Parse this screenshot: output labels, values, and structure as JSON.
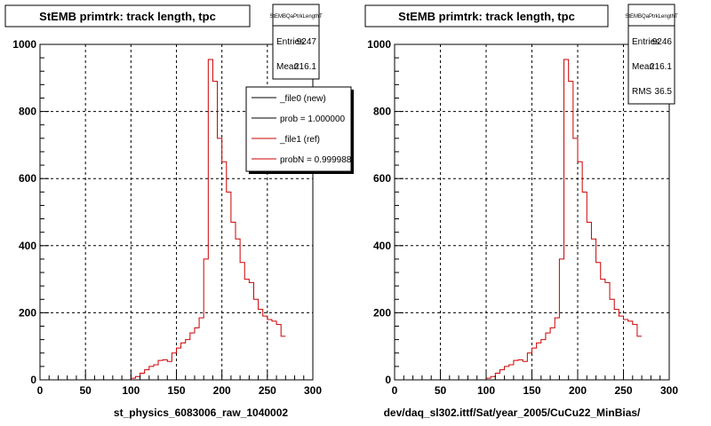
{
  "footer_text": "",
  "chart_data": [
    {
      "type": "histogram",
      "title": "StEMB primtrk: track length, tpc",
      "xlabel": "st_physics_6083006_raw_1040002",
      "ylabel": "",
      "xlim": [
        0,
        300
      ],
      "ylim": [
        0,
        1000
      ],
      "x_ticks": [
        "0",
        "50",
        "100",
        "150",
        "200",
        "250",
        "300"
      ],
      "y_ticks": [
        "0",
        "200",
        "400",
        "600",
        "800",
        "1000"
      ],
      "grid": true,
      "bin_width": 5,
      "bin_start": 0,
      "series": [
        {
          "name": "_file1 (ref)",
          "color": "#cc0000",
          "values": [
            0,
            0,
            0,
            0,
            0,
            0,
            0,
            0,
            0,
            0,
            0,
            0,
            0,
            0,
            0,
            0,
            0,
            0,
            0,
            0,
            5,
            10,
            20,
            30,
            40,
            45,
            58,
            60,
            55,
            80,
            95,
            110,
            120,
            140,
            155,
            185,
            360,
            955,
            890,
            720,
            650,
            560,
            470,
            420,
            350,
            300,
            290,
            240,
            210,
            190,
            180,
            175,
            165,
            130
          ]
        }
      ],
      "stats": {
        "name": "StEMBQaPtrkLengthT",
        "rows": [
          {
            "label": "Entries",
            "value": "9247"
          },
          {
            "label": "Mean",
            "value": "216.1"
          }
        ]
      },
      "legend": {
        "placement": "top-right",
        "entries": [
          {
            "label": "_file0 (new)",
            "color": "#000000"
          },
          {
            "label": "prob = 1.000000",
            "color": "#000000"
          },
          {
            "label": "_file1 (ref)",
            "color": "#cc0000"
          },
          {
            "label": "probN = 0.999988",
            "color": "#cc0000"
          }
        ]
      }
    },
    {
      "type": "histogram",
      "title": "StEMB primtrk: track length, tpc",
      "xlabel": "dev/daq_sl302.ittf/Sat/year_2005/CuCu22_MinBias/",
      "ylabel": "",
      "xlim": [
        0,
        300
      ],
      "ylim": [
        0,
        1000
      ],
      "x_ticks": [
        "0",
        "50",
        "100",
        "150",
        "200",
        "250",
        "300"
      ],
      "y_ticks": [
        "0",
        "200",
        "400",
        "600",
        "800",
        "1000"
      ],
      "grid": true,
      "bin_width": 5,
      "bin_start": 0,
      "series": [
        {
          "name": "",
          "color": "#cc0000",
          "values": [
            0,
            0,
            0,
            0,
            0,
            0,
            0,
            0,
            0,
            0,
            0,
            0,
            0,
            0,
            0,
            0,
            0,
            0,
            0,
            0,
            5,
            10,
            20,
            30,
            40,
            45,
            58,
            60,
            55,
            80,
            95,
            110,
            120,
            140,
            155,
            185,
            360,
            955,
            890,
            720,
            650,
            560,
            470,
            420,
            350,
            300,
            290,
            240,
            210,
            190,
            180,
            175,
            165,
            130
          ]
        }
      ],
      "stats": {
        "name": "StEMBQaPtrkLengthT",
        "rows": [
          {
            "label": "Entries",
            "value": "9246"
          },
          {
            "label": "Mean",
            "value": "216.1"
          },
          {
            "label": "RMS",
            "value": "36.5"
          }
        ]
      }
    }
  ]
}
